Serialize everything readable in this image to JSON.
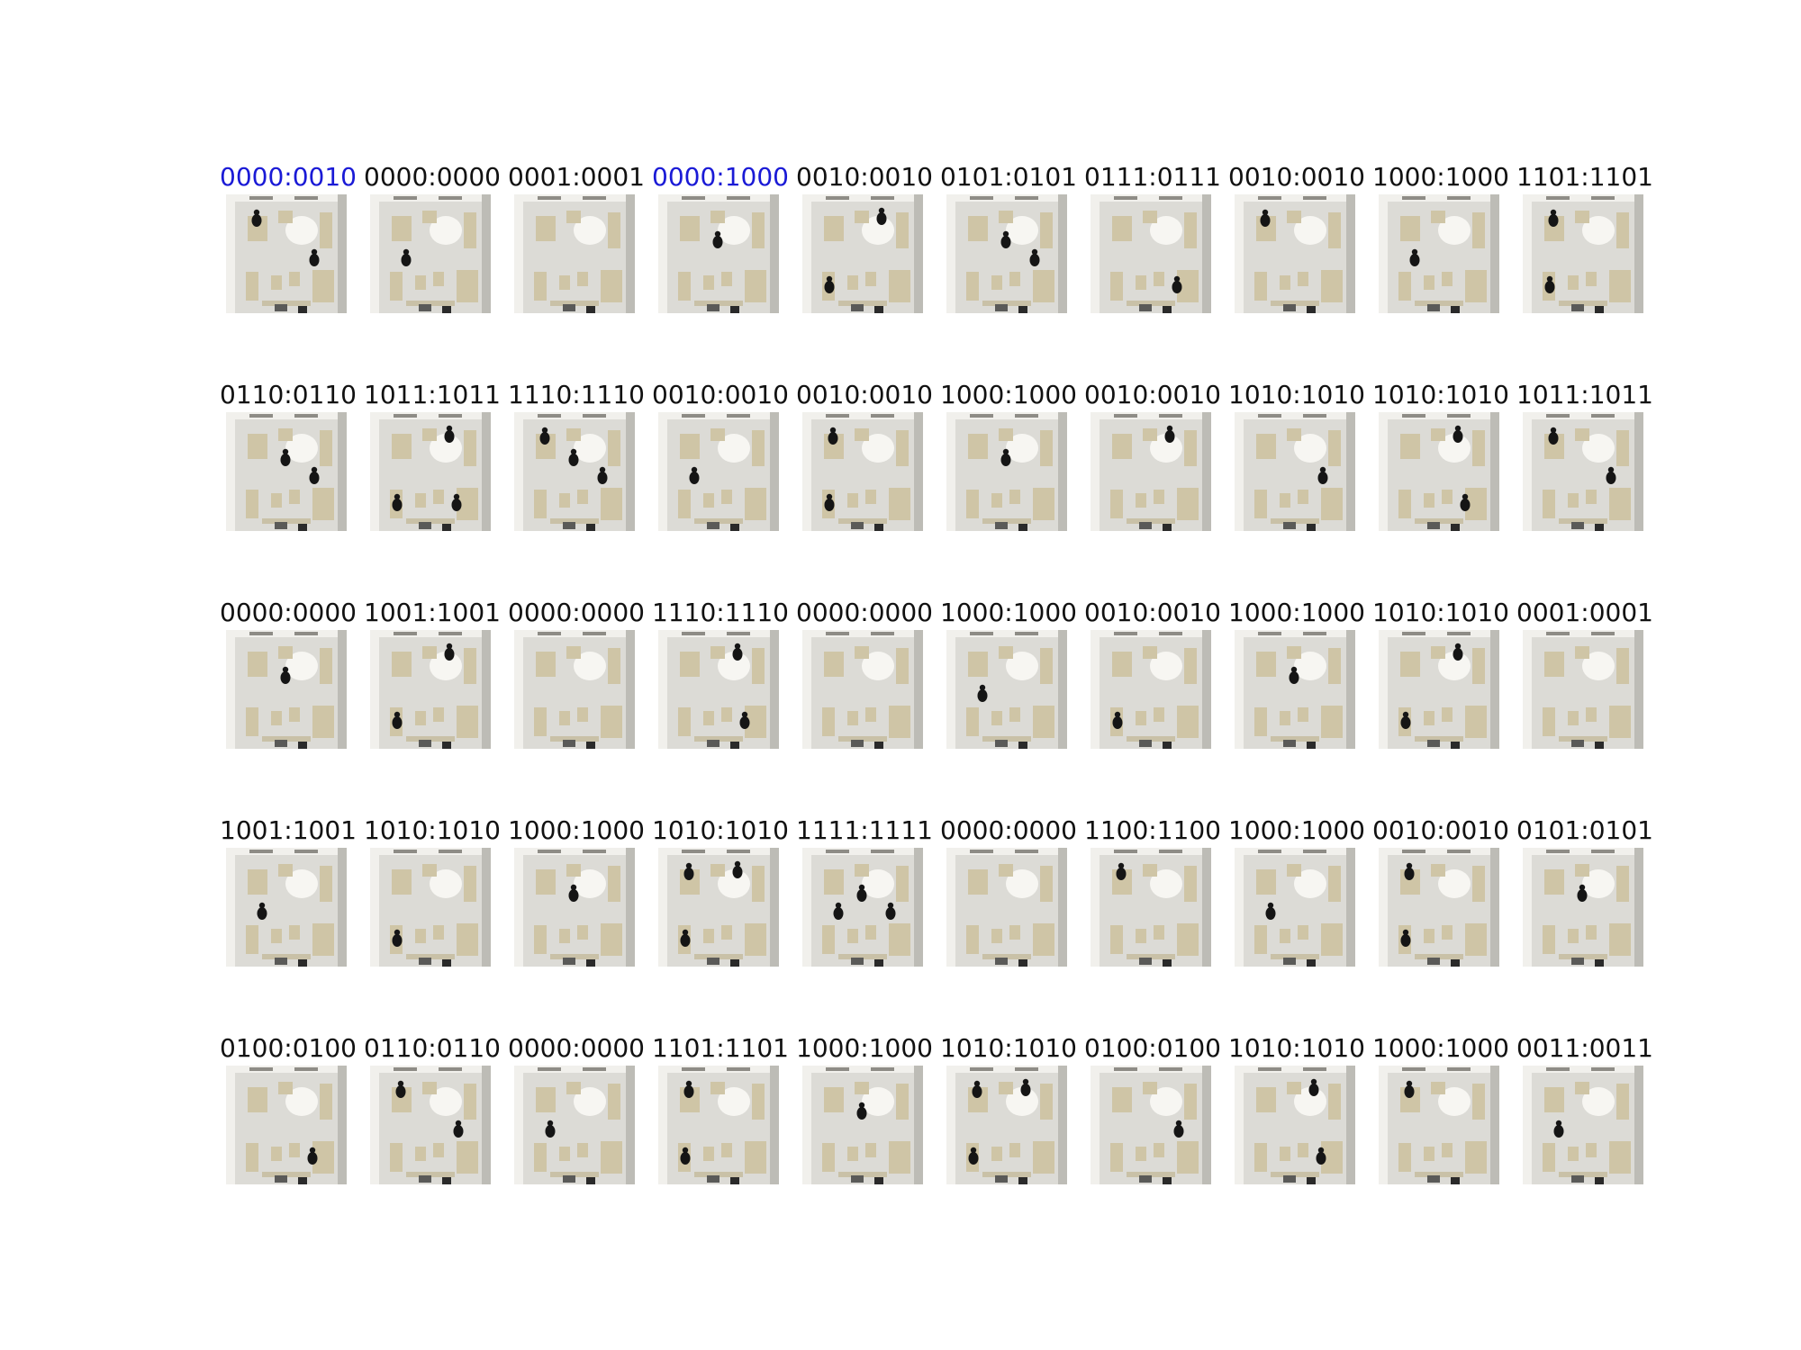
{
  "figure": {
    "rows": [
      [
        {
          "label": "0000:0010",
          "highlight": true,
          "people": 2
        },
        {
          "label": "0000:0000",
          "highlight": false,
          "people": 1
        },
        {
          "label": "0001:0001",
          "highlight": false,
          "people": 0
        },
        {
          "label": "0000:1000",
          "highlight": true,
          "people": 1
        },
        {
          "label": "0010:0010",
          "highlight": false,
          "people": 2
        },
        {
          "label": "0101:0101",
          "highlight": false,
          "people": 2
        },
        {
          "label": "0111:0111",
          "highlight": false,
          "people": 1
        },
        {
          "label": "0010:0010",
          "highlight": false,
          "people": 1
        },
        {
          "label": "1000:1000",
          "highlight": false,
          "people": 1
        },
        {
          "label": "1101:1101",
          "highlight": false,
          "people": 2
        }
      ],
      [
        {
          "label": "0110:0110",
          "highlight": false,
          "people": 2
        },
        {
          "label": "1011:1011",
          "highlight": false,
          "people": 3
        },
        {
          "label": "1110:1110",
          "highlight": false,
          "people": 3
        },
        {
          "label": "0010:0010",
          "highlight": false,
          "people": 1
        },
        {
          "label": "0010:0010",
          "highlight": false,
          "people": 2
        },
        {
          "label": "1000:1000",
          "highlight": false,
          "people": 1
        },
        {
          "label": "0010:0010",
          "highlight": false,
          "people": 1
        },
        {
          "label": "1010:1010",
          "highlight": false,
          "people": 1
        },
        {
          "label": "1010:1010",
          "highlight": false,
          "people": 2
        },
        {
          "label": "1011:1011",
          "highlight": false,
          "people": 2
        }
      ],
      [
        {
          "label": "0000:0000",
          "highlight": false,
          "people": 1
        },
        {
          "label": "1001:1001",
          "highlight": false,
          "people": 2
        },
        {
          "label": "0000:0000",
          "highlight": false,
          "people": 0
        },
        {
          "label": "1110:1110",
          "highlight": false,
          "people": 2
        },
        {
          "label": "0000:0000",
          "highlight": false,
          "people": 0
        },
        {
          "label": "1000:1000",
          "highlight": false,
          "people": 1
        },
        {
          "label": "0010:0010",
          "highlight": false,
          "people": 1
        },
        {
          "label": "1000:1000",
          "highlight": false,
          "people": 1
        },
        {
          "label": "1010:1010",
          "highlight": false,
          "people": 2
        },
        {
          "label": "0001:0001",
          "highlight": false,
          "people": 0
        }
      ],
      [
        {
          "label": "1001:1001",
          "highlight": false,
          "people": 1
        },
        {
          "label": "1010:1010",
          "highlight": false,
          "people": 1
        },
        {
          "label": "1000:1000",
          "highlight": false,
          "people": 1
        },
        {
          "label": "1010:1010",
          "highlight": false,
          "people": 3
        },
        {
          "label": "1111:1111",
          "highlight": false,
          "people": 3
        },
        {
          "label": "0000:0000",
          "highlight": false,
          "people": 0
        },
        {
          "label": "1100:1100",
          "highlight": false,
          "people": 1
        },
        {
          "label": "1000:1000",
          "highlight": false,
          "people": 1
        },
        {
          "label": "0010:0010",
          "highlight": false,
          "people": 2
        },
        {
          "label": "0101:0101",
          "highlight": false,
          "people": 1
        }
      ],
      [
        {
          "label": "0100:0100",
          "highlight": false,
          "people": 1
        },
        {
          "label": "0110:0110",
          "highlight": false,
          "people": 2
        },
        {
          "label": "0000:0000",
          "highlight": false,
          "people": 1
        },
        {
          "label": "1101:1101",
          "highlight": false,
          "people": 2
        },
        {
          "label": "1000:1000",
          "highlight": false,
          "people": 1
        },
        {
          "label": "1010:1010",
          "highlight": false,
          "people": 3
        },
        {
          "label": "0100:0100",
          "highlight": false,
          "people": 1
        },
        {
          "label": "1010:1010",
          "highlight": false,
          "people": 2
        },
        {
          "label": "1000:1000",
          "highlight": false,
          "people": 1
        },
        {
          "label": "0011:0011",
          "highlight": false,
          "people": 1
        }
      ]
    ],
    "colors": {
      "caption": "#111111",
      "caption_highlight": "#1a1ad6",
      "floor": "#dcdbd6",
      "wall": "#f1f0ec",
      "furniture": "#cfc5a6",
      "person": "#151515"
    }
  }
}
